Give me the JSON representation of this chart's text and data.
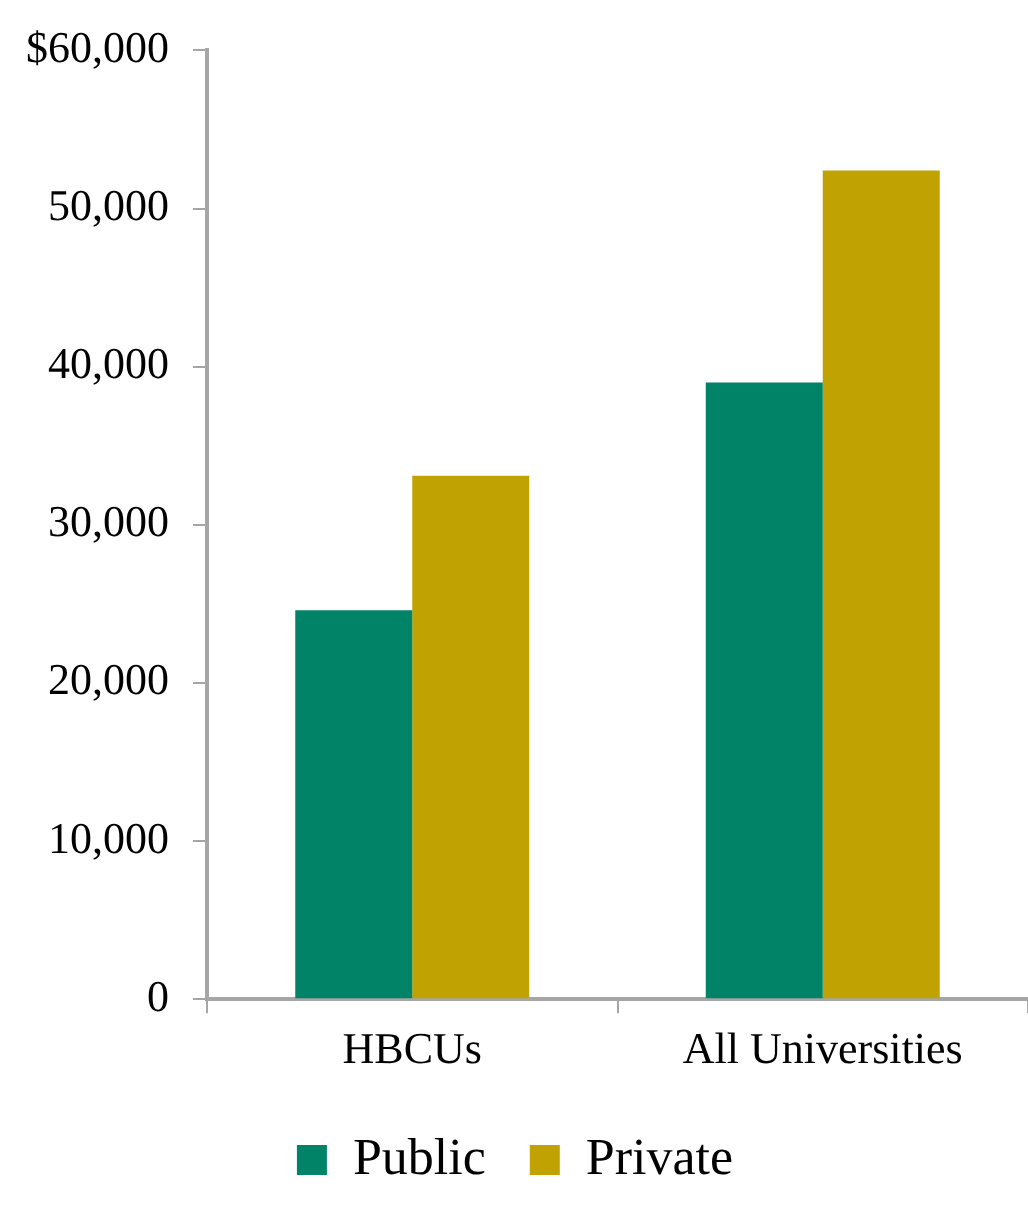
{
  "chart_data": {
    "type": "bar",
    "categories": [
      "HBCUs",
      "All Universities"
    ],
    "series": [
      {
        "name": "Public",
        "color": "#008366",
        "values": [
          24600,
          39000
        ]
      },
      {
        "name": "Private",
        "color": "#c1a203",
        "values": [
          33100,
          52400
        ]
      }
    ],
    "ylim": [
      0,
      60000
    ],
    "yticks": [
      0,
      {
        "value": 10000,
        "label": "10,000"
      },
      {
        "value": 20000,
        "label": "20,000"
      },
      {
        "value": 30000,
        "label": "30,000"
      },
      {
        "value": 40000,
        "label": "40,000"
      },
      {
        "value": 50000,
        "label": "50,000"
      },
      {
        "value": 60000,
        "label": "$60,000"
      }
    ],
    "grid": false,
    "legend": "bottom"
  }
}
